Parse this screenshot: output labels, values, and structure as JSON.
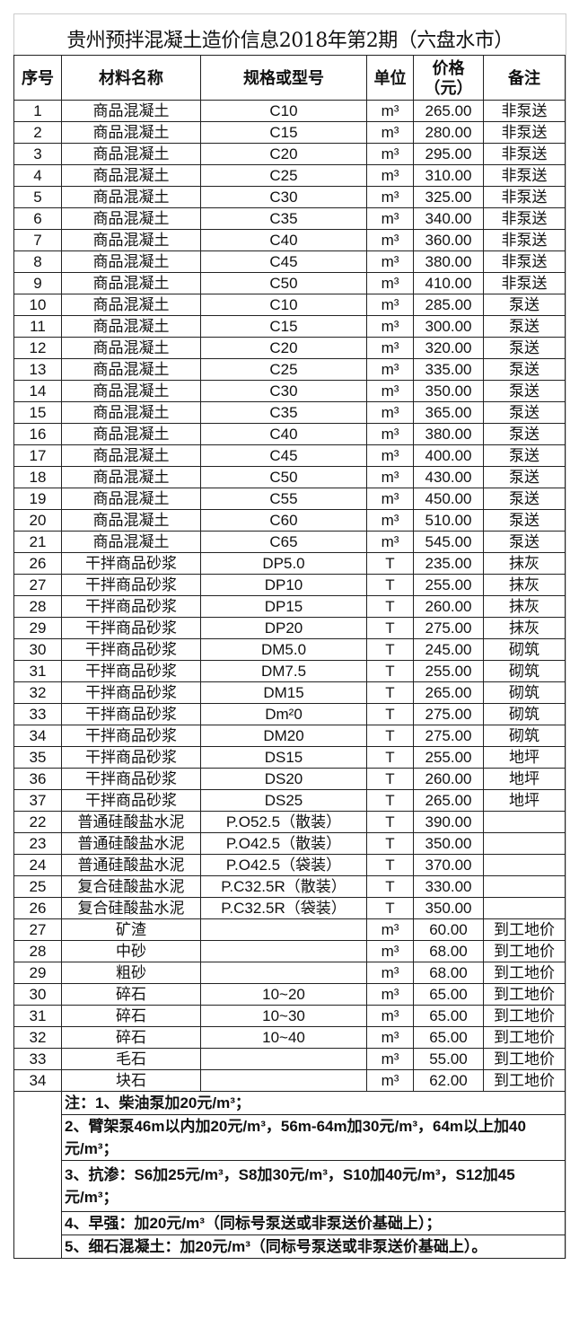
{
  "title": "贵州预拌混凝土造价信息2018年第2期（六盘水市）",
  "headers": [
    "序号",
    "材料名称",
    "规格或型号",
    "单位",
    "价格\n（元）",
    "备注"
  ],
  "rows": [
    [
      "1",
      "商品混凝土",
      "C10",
      "m³",
      "265.00",
      "非泵送"
    ],
    [
      "2",
      "商品混凝土",
      "C15",
      "m³",
      "280.00",
      "非泵送"
    ],
    [
      "3",
      "商品混凝土",
      "C20",
      "m³",
      "295.00",
      "非泵送"
    ],
    [
      "4",
      "商品混凝土",
      "C25",
      "m³",
      "310.00",
      "非泵送"
    ],
    [
      "5",
      "商品混凝土",
      "C30",
      "m³",
      "325.00",
      "非泵送"
    ],
    [
      "6",
      "商品混凝土",
      "C35",
      "m³",
      "340.00",
      "非泵送"
    ],
    [
      "7",
      "商品混凝土",
      "C40",
      "m³",
      "360.00",
      "非泵送"
    ],
    [
      "8",
      "商品混凝土",
      "C45",
      "m³",
      "380.00",
      "非泵送"
    ],
    [
      "9",
      "商品混凝土",
      "C50",
      "m³",
      "410.00",
      "非泵送"
    ],
    [
      "10",
      "商品混凝土",
      "C10",
      "m³",
      "285.00",
      "泵送"
    ],
    [
      "11",
      "商品混凝土",
      "C15",
      "m³",
      "300.00",
      "泵送"
    ],
    [
      "12",
      "商品混凝土",
      "C20",
      "m³",
      "320.00",
      "泵送"
    ],
    [
      "13",
      "商品混凝土",
      "C25",
      "m³",
      "335.00",
      "泵送"
    ],
    [
      "14",
      "商品混凝土",
      "C30",
      "m³",
      "350.00",
      "泵送"
    ],
    [
      "15",
      "商品混凝土",
      "C35",
      "m³",
      "365.00",
      "泵送"
    ],
    [
      "16",
      "商品混凝土",
      "C40",
      "m³",
      "380.00",
      "泵送"
    ],
    [
      "17",
      "商品混凝土",
      "C45",
      "m³",
      "400.00",
      "泵送"
    ],
    [
      "18",
      "商品混凝土",
      "C50",
      "m³",
      "430.00",
      "泵送"
    ],
    [
      "19",
      "商品混凝土",
      "C55",
      "m³",
      "450.00",
      "泵送"
    ],
    [
      "20",
      "商品混凝土",
      "C60",
      "m³",
      "510.00",
      "泵送"
    ],
    [
      "21",
      "商品混凝土",
      "C65",
      "m³",
      "545.00",
      "泵送"
    ],
    [
      "26",
      "干拌商品砂浆",
      "DP5.0",
      "T",
      "235.00",
      "抹灰"
    ],
    [
      "27",
      "干拌商品砂浆",
      "DP10",
      "T",
      "255.00",
      "抹灰"
    ],
    [
      "28",
      "干拌商品砂浆",
      "DP15",
      "T",
      "260.00",
      "抹灰"
    ],
    [
      "29",
      "干拌商品砂浆",
      "DP20",
      "T",
      "275.00",
      "抹灰"
    ],
    [
      "30",
      "干拌商品砂浆",
      "DM5.0",
      "T",
      "245.00",
      "砌筑"
    ],
    [
      "31",
      "干拌商品砂浆",
      "DM7.5",
      "T",
      "255.00",
      "砌筑"
    ],
    [
      "32",
      "干拌商品砂浆",
      "DM15",
      "T",
      "265.00",
      "砌筑"
    ],
    [
      "33",
      "干拌商品砂浆",
      "Dm²0",
      "T",
      "275.00",
      "砌筑"
    ],
    [
      "34",
      "干拌商品砂浆",
      "DM20",
      "T",
      "275.00",
      "砌筑"
    ],
    [
      "35",
      "干拌商品砂浆",
      "DS15",
      "T",
      "255.00",
      "地坪"
    ],
    [
      "36",
      "干拌商品砂浆",
      "DS20",
      "T",
      "260.00",
      "地坪"
    ],
    [
      "37",
      "干拌商品砂浆",
      "DS25",
      "T",
      "265.00",
      "地坪"
    ],
    [
      "22",
      "普通硅酸盐水泥",
      "P.O52.5（散装）",
      "T",
      "390.00",
      ""
    ],
    [
      "23",
      "普通硅酸盐水泥",
      "P.O42.5（散装）",
      "T",
      "350.00",
      ""
    ],
    [
      "24",
      "普通硅酸盐水泥",
      "P.O42.5（袋装）",
      "T",
      "370.00",
      ""
    ],
    [
      "25",
      "复合硅酸盐水泥",
      "P.C32.5R（散装）",
      "T",
      "330.00",
      ""
    ],
    [
      "26",
      "复合硅酸盐水泥",
      "P.C32.5R（袋装）",
      "T",
      "350.00",
      ""
    ],
    [
      "27",
      "矿渣",
      "",
      "m³",
      "60.00",
      "到工地价"
    ],
    [
      "28",
      "中砂",
      "",
      "m³",
      "68.00",
      "到工地价"
    ],
    [
      "29",
      "粗砂",
      "",
      "m³",
      "68.00",
      "到工地价"
    ],
    [
      "30",
      "碎石",
      "10~20",
      "m³",
      "65.00",
      "到工地价"
    ],
    [
      "31",
      "碎石",
      "10~30",
      "m³",
      "65.00",
      "到工地价"
    ],
    [
      "32",
      "碎石",
      "10~40",
      "m³",
      "65.00",
      "到工地价"
    ],
    [
      "33",
      "毛石",
      "",
      "m³",
      "55.00",
      "到工地价"
    ],
    [
      "34",
      "块石",
      "",
      "m³",
      "62.00",
      "到工地价"
    ]
  ],
  "notes": [
    "注：1、柴油泵加20元/m³；",
    "2、臂架泵46m以内加20元/m³，56m-64m加30元/m³，64m以上加40元/m³；",
    "3、抗渗：S6加25元/m³，S8加30元/m³，S10加40元/m³，S12加45元/m³；",
    "4、早强：加20元/m³（同标号泵送或非泵送价基础上）；",
    "5、细石混凝土：加20元/m³（同标号泵送或非泵送价基础上）。"
  ]
}
